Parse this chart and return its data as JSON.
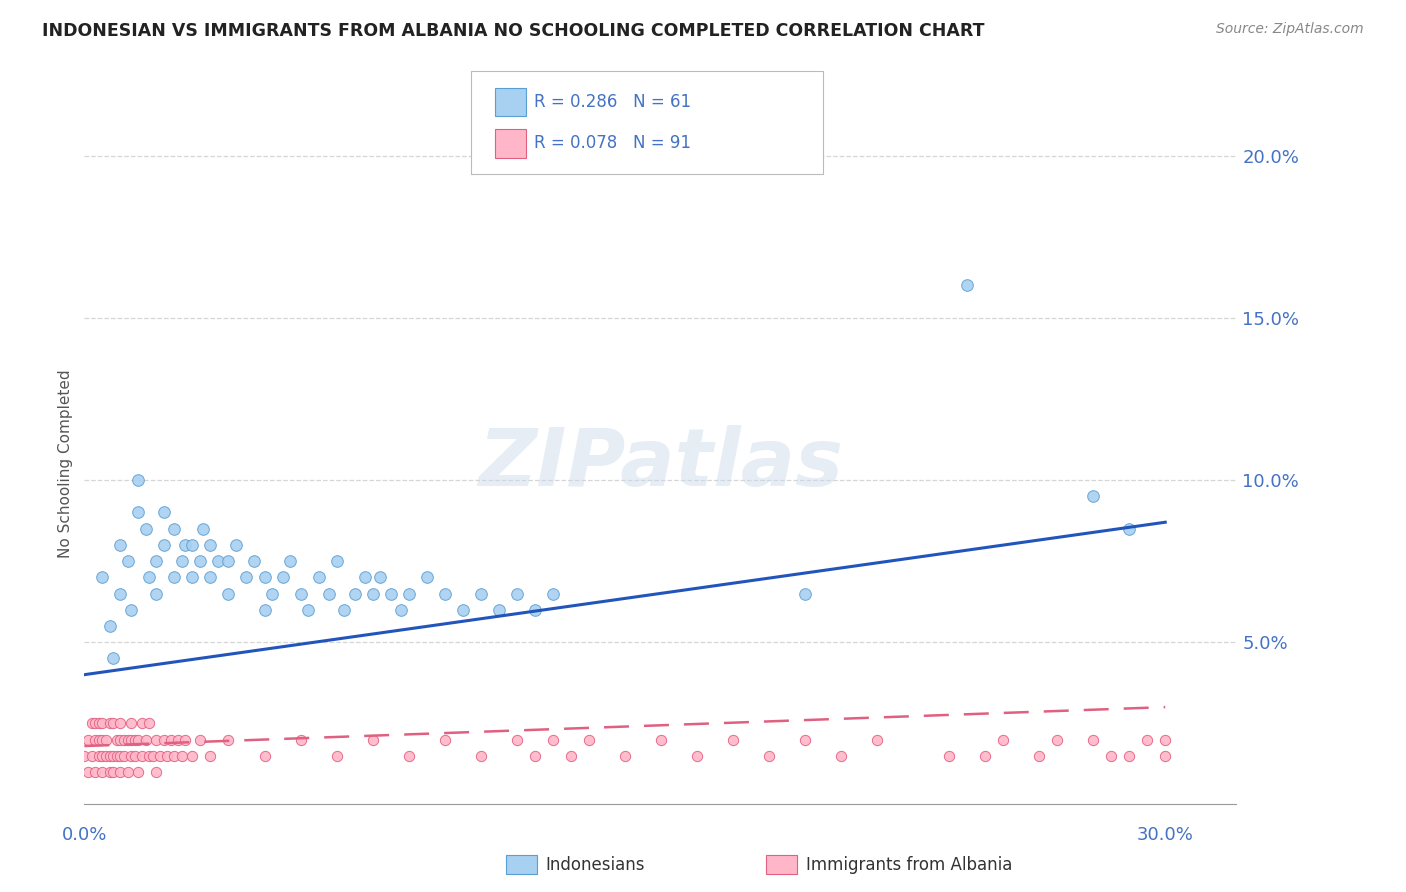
{
  "title": "INDONESIAN VS IMMIGRANTS FROM ALBANIA NO SCHOOLING COMPLETED CORRELATION CHART",
  "source": "Source: ZipAtlas.com",
  "ylabel": "No Schooling Completed",
  "xlim": [
    0.0,
    0.32
  ],
  "ylim": [
    -0.005,
    0.215
  ],
  "xtick_labels": [
    "0.0%",
    "30.0%"
  ],
  "xtick_vals": [
    0.0,
    0.3
  ],
  "yticks": [
    0.0,
    0.05,
    0.1,
    0.15,
    0.2
  ],
  "ytick_labels": [
    "",
    "5.0%",
    "10.0%",
    "15.0%",
    "20.0%"
  ],
  "blue_color": "#a8d0f0",
  "blue_edge": "#5a9fd4",
  "pink_color": "#ffb6c8",
  "pink_edge": "#e06080",
  "blue_line_color": "#2255bb",
  "pink_line_color": "#e06080",
  "legend_indonesians": "Indonesians",
  "legend_albania": "Immigrants from Albania",
  "watermark": "ZIPatlas",
  "background_color": "#ffffff",
  "grid_color": "#cccccc",
  "tick_color": "#4472c4",
  "title_color": "#222222",
  "blue_scatter_x": [
    0.005,
    0.007,
    0.008,
    0.01,
    0.01,
    0.012,
    0.013,
    0.015,
    0.015,
    0.017,
    0.018,
    0.02,
    0.02,
    0.022,
    0.022,
    0.025,
    0.025,
    0.027,
    0.028,
    0.03,
    0.03,
    0.032,
    0.033,
    0.035,
    0.035,
    0.037,
    0.04,
    0.04,
    0.042,
    0.045,
    0.047,
    0.05,
    0.05,
    0.052,
    0.055,
    0.057,
    0.06,
    0.062,
    0.065,
    0.068,
    0.07,
    0.072,
    0.075,
    0.078,
    0.08,
    0.082,
    0.085,
    0.088,
    0.09,
    0.095,
    0.1,
    0.105,
    0.11,
    0.115,
    0.12,
    0.125,
    0.13,
    0.245,
    0.29,
    0.28,
    0.2
  ],
  "blue_scatter_y": [
    0.07,
    0.055,
    0.045,
    0.08,
    0.065,
    0.075,
    0.06,
    0.1,
    0.09,
    0.085,
    0.07,
    0.075,
    0.065,
    0.09,
    0.08,
    0.085,
    0.07,
    0.075,
    0.08,
    0.07,
    0.08,
    0.075,
    0.085,
    0.07,
    0.08,
    0.075,
    0.065,
    0.075,
    0.08,
    0.07,
    0.075,
    0.06,
    0.07,
    0.065,
    0.07,
    0.075,
    0.065,
    0.06,
    0.07,
    0.065,
    0.075,
    0.06,
    0.065,
    0.07,
    0.065,
    0.07,
    0.065,
    0.06,
    0.065,
    0.07,
    0.065,
    0.06,
    0.065,
    0.06,
    0.065,
    0.06,
    0.065,
    0.16,
    0.085,
    0.095,
    0.065
  ],
  "pink_scatter_x": [
    0.0,
    0.001,
    0.001,
    0.002,
    0.002,
    0.003,
    0.003,
    0.003,
    0.004,
    0.004,
    0.004,
    0.005,
    0.005,
    0.005,
    0.005,
    0.006,
    0.006,
    0.007,
    0.007,
    0.007,
    0.008,
    0.008,
    0.008,
    0.009,
    0.009,
    0.01,
    0.01,
    0.01,
    0.01,
    0.011,
    0.011,
    0.012,
    0.012,
    0.013,
    0.013,
    0.013,
    0.014,
    0.014,
    0.015,
    0.015,
    0.016,
    0.016,
    0.017,
    0.018,
    0.018,
    0.019,
    0.02,
    0.02,
    0.021,
    0.022,
    0.023,
    0.024,
    0.025,
    0.026,
    0.027,
    0.028,
    0.03,
    0.032,
    0.035,
    0.04,
    0.05,
    0.06,
    0.07,
    0.08,
    0.09,
    0.1,
    0.11,
    0.12,
    0.125,
    0.13,
    0.135,
    0.14,
    0.15,
    0.16,
    0.17,
    0.18,
    0.19,
    0.2,
    0.21,
    0.22,
    0.25,
    0.28,
    0.29,
    0.3,
    0.3,
    0.295,
    0.285,
    0.27,
    0.265,
    0.255,
    0.24
  ],
  "pink_scatter_y": [
    0.015,
    0.01,
    0.02,
    0.015,
    0.025,
    0.01,
    0.02,
    0.025,
    0.015,
    0.02,
    0.025,
    0.01,
    0.015,
    0.02,
    0.025,
    0.015,
    0.02,
    0.01,
    0.015,
    0.025,
    0.01,
    0.015,
    0.025,
    0.015,
    0.02,
    0.01,
    0.015,
    0.02,
    0.025,
    0.015,
    0.02,
    0.01,
    0.02,
    0.015,
    0.02,
    0.025,
    0.015,
    0.02,
    0.01,
    0.02,
    0.015,
    0.025,
    0.02,
    0.015,
    0.025,
    0.015,
    0.01,
    0.02,
    0.015,
    0.02,
    0.015,
    0.02,
    0.015,
    0.02,
    0.015,
    0.02,
    0.015,
    0.02,
    0.015,
    0.02,
    0.015,
    0.02,
    0.015,
    0.02,
    0.015,
    0.02,
    0.015,
    0.02,
    0.015,
    0.02,
    0.015,
    0.02,
    0.015,
    0.02,
    0.015,
    0.02,
    0.015,
    0.02,
    0.015,
    0.02,
    0.015,
    0.02,
    0.015,
    0.02,
    0.015,
    0.02,
    0.015,
    0.02,
    0.015,
    0.02,
    0.015
  ],
  "blue_trend": [
    0.04,
    0.087
  ],
  "pink_trend": [
    0.018,
    0.03
  ]
}
